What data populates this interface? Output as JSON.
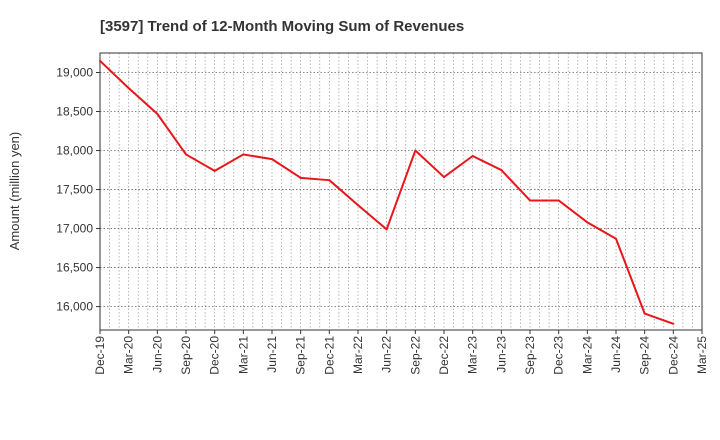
{
  "chart_data": {
    "type": "line",
    "title": "[3597]  Trend of 12-Month Moving Sum of Revenues",
    "xlabel": "",
    "ylabel": "Amount (million yen)",
    "x_ticks": [
      "Dec-19",
      "Mar-20",
      "Jun-20",
      "Sep-20",
      "Dec-20",
      "Mar-21",
      "Jun-21",
      "Sep-21",
      "Dec-21",
      "Mar-22",
      "Jun-22",
      "Sep-22",
      "Dec-22",
      "Mar-23",
      "Jun-23",
      "Sep-23",
      "Dec-23",
      "Mar-24",
      "Jun-24",
      "Sep-24",
      "Dec-24",
      "Mar-25"
    ],
    "y_ticks": [
      16000,
      16500,
      17000,
      17500,
      18000,
      18500,
      19000
    ],
    "y_tick_labels": [
      "16,000",
      "16,500",
      "17,000",
      "17,500",
      "18,000",
      "18,500",
      "19,000"
    ],
    "ylim": [
      15700,
      19250
    ],
    "grid": true,
    "series": [
      {
        "color": "#e8161b",
        "x": [
          "Dec-19",
          "Mar-20",
          "Jun-20",
          "Sep-20",
          "Dec-20",
          "Mar-21",
          "Jun-21",
          "Sep-21",
          "Dec-21",
          "Mar-22",
          "Jun-22",
          "Sep-22",
          "Dec-22",
          "Mar-23",
          "Jun-23",
          "Sep-23",
          "Dec-23",
          "Mar-24",
          "Jun-24",
          "Sep-24",
          "Dec-24"
        ],
        "values": [
          19150,
          18800,
          18470,
          17950,
          17740,
          17950,
          17890,
          17650,
          17620,
          17300,
          16990,
          18000,
          17660,
          17930,
          17750,
          17360,
          17360,
          17080,
          16870,
          15910,
          15780
        ]
      }
    ]
  }
}
